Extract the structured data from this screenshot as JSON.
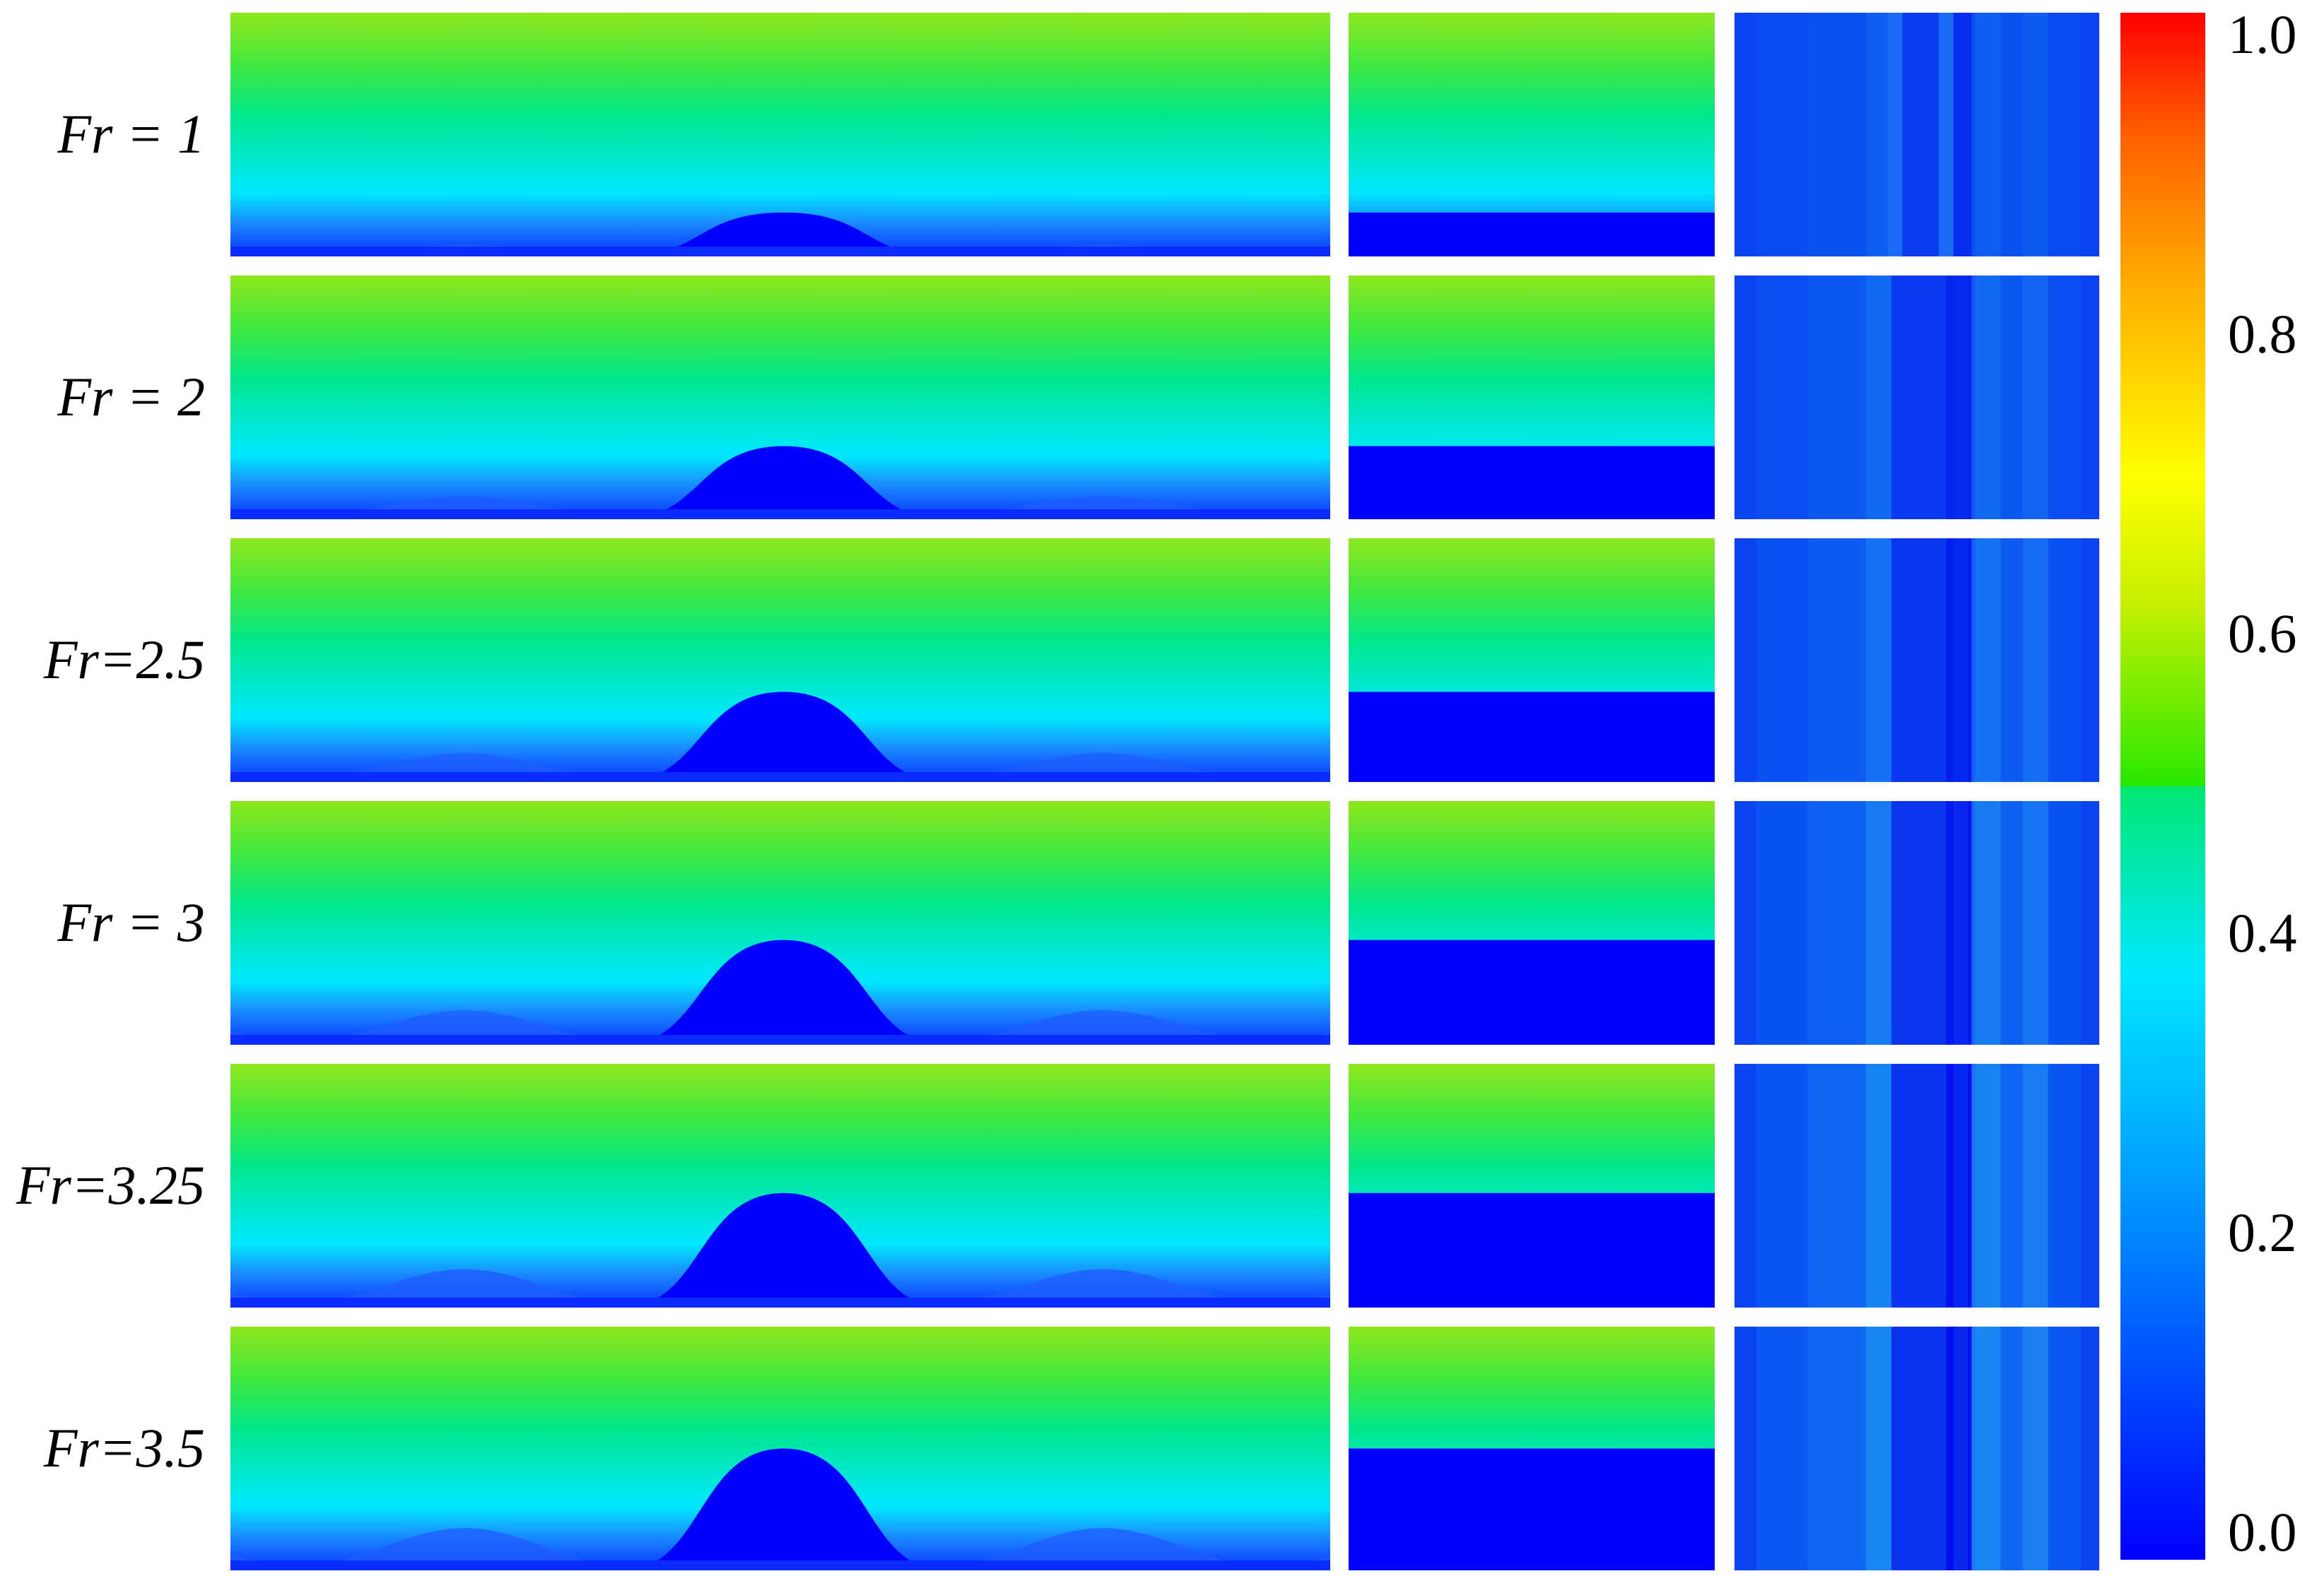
{
  "chart_data": {
    "type": "heatmap",
    "title": "",
    "colormap": "rainbow (blue-cyan-green-yellow-red)",
    "colors": {
      "low": "#0000ff",
      "cyan": "#00e8ff",
      "green_mid": "#00e88a",
      "green_top": "#8fe81c",
      "high": "#ff0000"
    },
    "colorbar": {
      "min": 0.0,
      "max": 1.0,
      "tick_labels": [
        "1.0",
        "0.8",
        "0.6",
        "0.4",
        "0.2",
        "0.0"
      ]
    },
    "panel_columns": 3,
    "rows": [
      {
        "label": "Fr = 1",
        "Fr": 1,
        "bump_height": 0.18,
        "side_wave": 0.06,
        "step_level": 0.82,
        "strip_contrast": 0.05
      },
      {
        "label": "Fr = 2",
        "Fr": 2,
        "bump_height": 0.3,
        "side_wave": 0.12,
        "step_level": 0.7,
        "strip_contrast": 0.2
      },
      {
        "label": "Fr=2.5",
        "Fr": 2.5,
        "bump_height": 0.37,
        "side_wave": 0.15,
        "step_level": 0.63,
        "strip_contrast": 0.3
      },
      {
        "label": "Fr = 3",
        "Fr": 3,
        "bump_height": 0.43,
        "side_wave": 0.18,
        "step_level": 0.57,
        "strip_contrast": 0.4
      },
      {
        "label": "Fr=3.25",
        "Fr": 3.25,
        "bump_height": 0.47,
        "side_wave": 0.2,
        "step_level": 0.53,
        "strip_contrast": 0.5
      },
      {
        "label": "Fr=3.5",
        "Fr": 3.5,
        "bump_height": 0.5,
        "side_wave": 0.22,
        "step_level": 0.5,
        "strip_contrast": 0.55
      }
    ]
  }
}
